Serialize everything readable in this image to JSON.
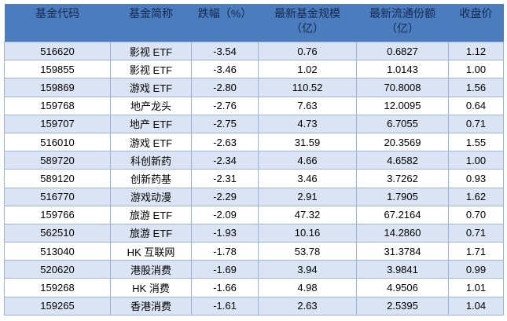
{
  "chart_data": {
    "type": "table",
    "title": "",
    "columns": [
      "基金代码",
      "基金简称",
      "跌幅（%）",
      "最新基金规模（亿）",
      "最新流通份额（亿）",
      "收盘价"
    ],
    "header_lines": [
      [
        "基金代码"
      ],
      [
        "基金简称"
      ],
      [
        "跌幅（%）"
      ],
      [
        "最新基金规模",
        "（亿）"
      ],
      [
        "最新流通份额",
        "（亿）"
      ],
      [
        "收盘价"
      ]
    ],
    "rows": [
      [
        "516620",
        "影视 ETF",
        "-3.54",
        "0.76",
        "0.6827",
        "1.12"
      ],
      [
        "159855",
        "影视 ETF",
        "-3.46",
        "1.02",
        "1.0143",
        "1.00"
      ],
      [
        "159869",
        "游戏 ETF",
        "-2.80",
        "110.52",
        "70.8008",
        "1.56"
      ],
      [
        "159768",
        "地产龙头",
        "-2.76",
        "7.63",
        "12.0095",
        "0.64"
      ],
      [
        "159707",
        "地产 ETF",
        "-2.75",
        "4.73",
        "6.7055",
        "0.71"
      ],
      [
        "516010",
        "游戏 ETF",
        "-2.63",
        "31.59",
        "20.3569",
        "1.55"
      ],
      [
        "589720",
        "科创新药",
        "-2.34",
        "4.66",
        "4.6582",
        "1.00"
      ],
      [
        "589120",
        "创新药基",
        "-2.31",
        "3.46",
        "3.7262",
        "0.93"
      ],
      [
        "516770",
        "游戏动漫",
        "-2.29",
        "2.91",
        "1.7905",
        "1.62"
      ],
      [
        "159766",
        "旅游 ETF",
        "-2.09",
        "47.32",
        "67.2164",
        "0.70"
      ],
      [
        "562510",
        "旅游 ETF",
        "-1.93",
        "10.16",
        "14.2860",
        "0.71"
      ],
      [
        "513040",
        "HK 互联网",
        "-1.78",
        "53.78",
        "31.3784",
        "1.71"
      ],
      [
        "520620",
        "港股消费",
        "-1.69",
        "3.94",
        "3.9841",
        "0.99"
      ],
      [
        "159268",
        "HK 消费",
        "-1.66",
        "4.98",
        "4.9506",
        "1.01"
      ],
      [
        "159265",
        "香港消费",
        "-1.61",
        "2.63",
        "2.5395",
        "1.04"
      ]
    ],
    "layout_hints": {
      "zebra_striping": true,
      "first_data_row_shade": "light-blue",
      "grid": true
    },
    "colors": {
      "header_bg": "#4b7dbe",
      "header_text": "#14294e",
      "row_alt_bg": "#dbe4f4",
      "row_bg": "#ffffff",
      "border": "#9db4d6",
      "cell_text": "#000000",
      "page_bg": "#ffffff"
    }
  }
}
